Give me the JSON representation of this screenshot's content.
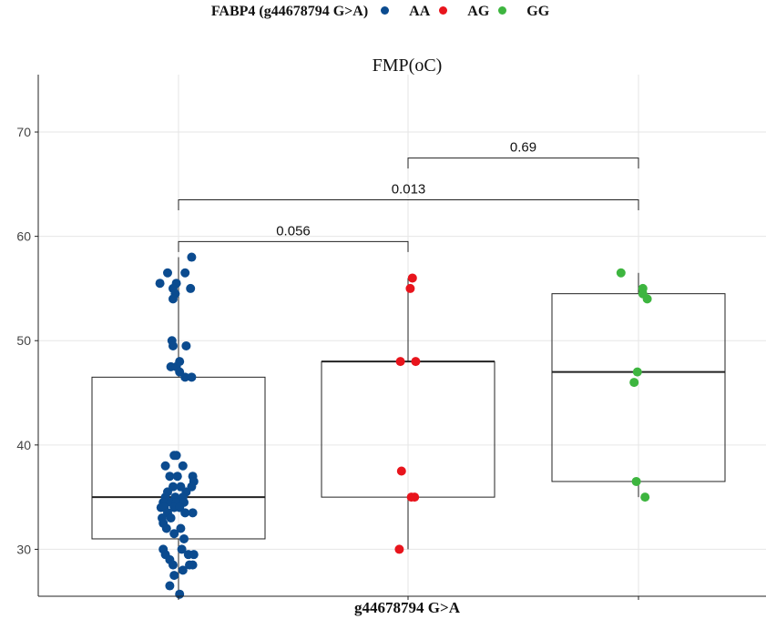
{
  "legend": {
    "title": "FABP4 (g44678794 G>A)",
    "items": [
      {
        "label": "AA",
        "color": "#0b4b8f"
      },
      {
        "label": "AG",
        "color": "#e8141c"
      },
      {
        "label": "GG",
        "color": "#3db53f"
      }
    ]
  },
  "chart_data": {
    "type": "box",
    "title": "FMP(oC)",
    "xlabel": "g44678794 G>A",
    "ylabel": "",
    "ylim": [
      25.5,
      75.5
    ],
    "yticks": [
      30,
      40,
      50,
      60,
      70
    ],
    "grid": true,
    "legend_position": "top",
    "groups": [
      {
        "name": "AA",
        "color": "#0b4b8f",
        "box": {
          "q1": 31,
          "median": 35,
          "q3": 46.5,
          "whisker_low": 25.5,
          "whisker_high": 58
        },
        "points": [
          {
            "x": -0.17,
            "y": 55.5
          },
          {
            "x": -0.1,
            "y": 56.5
          },
          {
            "x": -0.02,
            "y": 55.5
          },
          {
            "x": -0.05,
            "y": 55
          },
          {
            "x": -0.03,
            "y": 54.5
          },
          {
            "x": -0.05,
            "y": 54
          },
          {
            "x": 0.06,
            "y": 56.5
          },
          {
            "x": 0.12,
            "y": 58
          },
          {
            "x": 0.11,
            "y": 55
          },
          {
            "x": -0.06,
            "y": 50
          },
          {
            "x": -0.05,
            "y": 49.5
          },
          {
            "x": 0.07,
            "y": 49.5
          },
          {
            "x": -0.07,
            "y": 47.5
          },
          {
            "x": -0.02,
            "y": 47.5
          },
          {
            "x": 0.01,
            "y": 48
          },
          {
            "x": 0.01,
            "y": 47
          },
          {
            "x": 0.06,
            "y": 46.5
          },
          {
            "x": 0.12,
            "y": 46.5
          },
          {
            "x": -0.02,
            "y": 39
          },
          {
            "x": -0.04,
            "y": 39
          },
          {
            "x": -0.12,
            "y": 38
          },
          {
            "x": -0.08,
            "y": 37
          },
          {
            "x": 0.04,
            "y": 38
          },
          {
            "x": 0.13,
            "y": 37
          },
          {
            "x": 0.14,
            "y": 36.5
          },
          {
            "x": -0.01,
            "y": 37
          },
          {
            "x": 0.02,
            "y": 36
          },
          {
            "x": 0.07,
            "y": 35.5
          },
          {
            "x": 0.12,
            "y": 36
          },
          {
            "x": -0.05,
            "y": 36
          },
          {
            "x": -0.1,
            "y": 35.5
          },
          {
            "x": -0.12,
            "y": 35
          },
          {
            "x": -0.03,
            "y": 35
          },
          {
            "x": 0.04,
            "y": 35
          },
          {
            "x": -0.14,
            "y": 34.5
          },
          {
            "x": -0.07,
            "y": 34.5
          },
          {
            "x": -0.02,
            "y": 34.5
          },
          {
            "x": 0.05,
            "y": 34.5
          },
          {
            "x": -0.16,
            "y": 34
          },
          {
            "x": -0.13,
            "y": 34
          },
          {
            "x": -0.04,
            "y": 34
          },
          {
            "x": 0.01,
            "y": 34
          },
          {
            "x": -0.1,
            "y": 33.5
          },
          {
            "x": 0.06,
            "y": 33.5
          },
          {
            "x": 0.13,
            "y": 33.5
          },
          {
            "x": -0.15,
            "y": 33
          },
          {
            "x": -0.07,
            "y": 33
          },
          {
            "x": -0.14,
            "y": 32.5
          },
          {
            "x": -0.11,
            "y": 32
          },
          {
            "x": 0.02,
            "y": 32
          },
          {
            "x": -0.04,
            "y": 31.5
          },
          {
            "x": 0.05,
            "y": 31
          },
          {
            "x": -0.14,
            "y": 30
          },
          {
            "x": -0.12,
            "y": 29.5
          },
          {
            "x": 0.03,
            "y": 30
          },
          {
            "x": -0.08,
            "y": 29
          },
          {
            "x": 0.09,
            "y": 29.5
          },
          {
            "x": 0.14,
            "y": 29.5
          },
          {
            "x": -0.05,
            "y": 28.5
          },
          {
            "x": 0.1,
            "y": 28.5
          },
          {
            "x": 0.13,
            "y": 28.5
          },
          {
            "x": 0.04,
            "y": 28
          },
          {
            "x": -0.04,
            "y": 27.5
          },
          {
            "x": -0.08,
            "y": 26.5
          },
          {
            "x": 0.01,
            "y": 25.7
          }
        ]
      },
      {
        "name": "AG",
        "color": "#e8141c",
        "box": {
          "q1": 35,
          "median": 48,
          "q3": 48,
          "whisker_low": 30,
          "whisker_high": 56
        },
        "points": [
          {
            "x": 0.04,
            "y": 56
          },
          {
            "x": 0.02,
            "y": 55
          },
          {
            "x": -0.07,
            "y": 48
          },
          {
            "x": 0.07,
            "y": 48
          },
          {
            "x": -0.06,
            "y": 37.5
          },
          {
            "x": 0.03,
            "y": 35
          },
          {
            "x": 0.06,
            "y": 35
          },
          {
            "x": -0.08,
            "y": 30
          }
        ]
      },
      {
        "name": "GG",
        "color": "#3db53f",
        "box": {
          "q1": 36.5,
          "median": 47,
          "q3": 54.5,
          "whisker_low": 35,
          "whisker_high": 56.5
        },
        "points": [
          {
            "x": -0.16,
            "y": 56.5
          },
          {
            "x": 0.04,
            "y": 55
          },
          {
            "x": 0.04,
            "y": 54.5
          },
          {
            "x": 0.08,
            "y": 54
          },
          {
            "x": -0.01,
            "y": 47
          },
          {
            "x": -0.04,
            "y": 46
          },
          {
            "x": -0.02,
            "y": 36.5
          },
          {
            "x": 0.06,
            "y": 35
          }
        ]
      }
    ],
    "comparisons": [
      {
        "from": 0,
        "to": 2,
        "y": 67.5,
        "label": "0.69",
        "left_drop": 66.5,
        "right_drop": 66.5,
        "from_offset": 1
      },
      {
        "from": 0,
        "to": 2,
        "y": 63.5,
        "label": "0.013",
        "left_drop": 62.5,
        "right_drop": 62.5,
        "from_offset": 0
      },
      {
        "from": 0,
        "to": 1,
        "y": 59.5,
        "label": "0.056",
        "left_drop": 58.5,
        "right_drop": 58.5,
        "from_offset": 0
      }
    ]
  }
}
